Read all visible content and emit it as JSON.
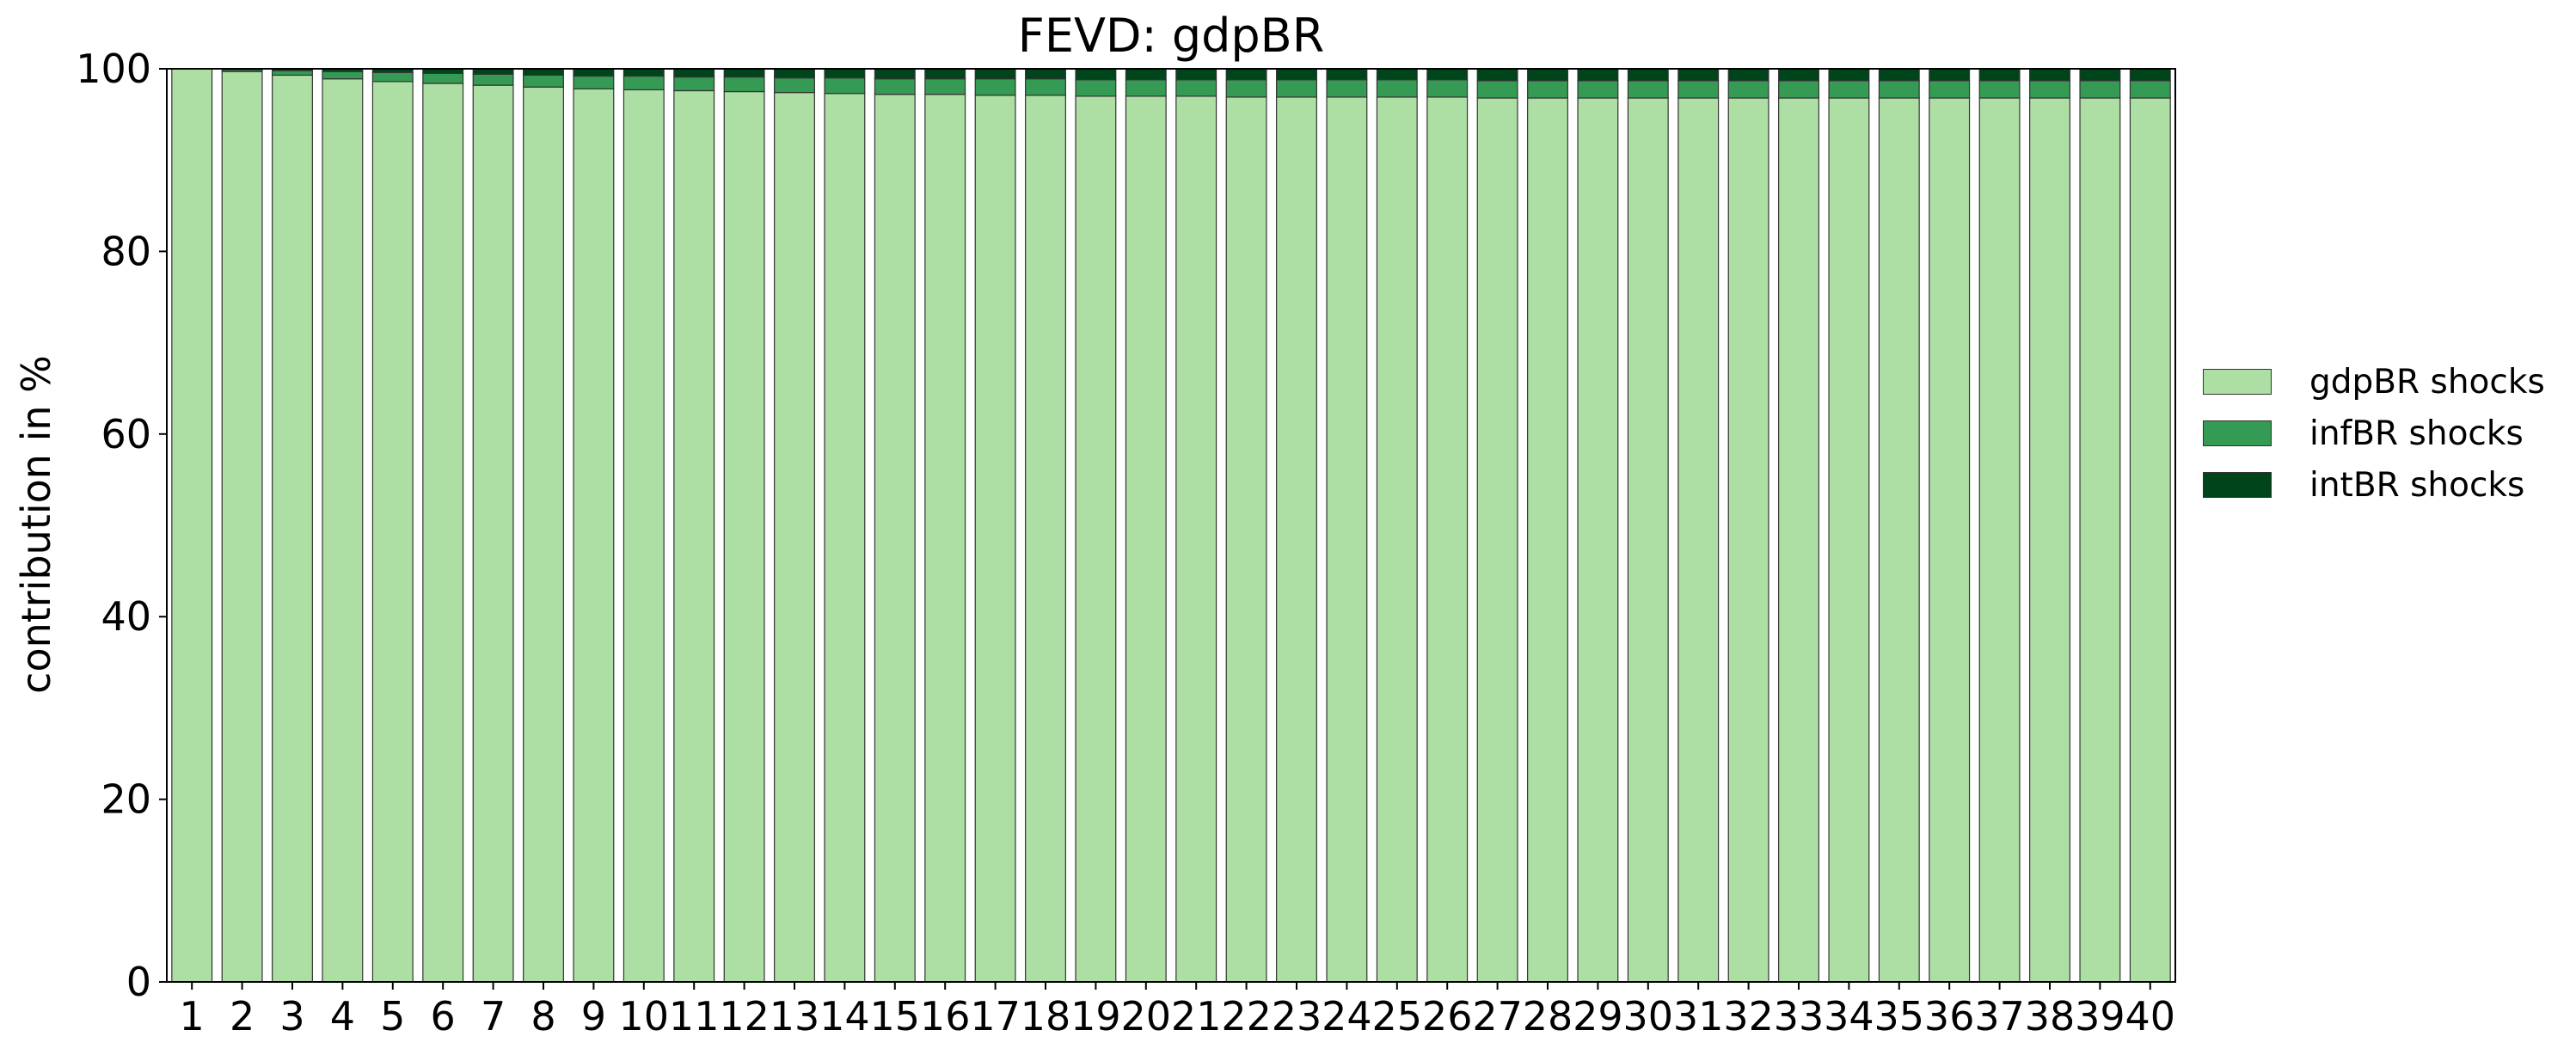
{
  "chart_data": {
    "type": "bar",
    "stacked": true,
    "title": "FEVD: gdpBR",
    "xlabel": "",
    "ylabel": "contribution in %",
    "ylim": [
      0,
      100
    ],
    "yticks": [
      "0",
      "20",
      "40",
      "60",
      "80",
      "100"
    ],
    "grid": false,
    "legend_position": "right",
    "categories": [
      "1",
      "2",
      "3",
      "4",
      "5",
      "6",
      "7",
      "8",
      "9",
      "10",
      "11",
      "12",
      "13",
      "14",
      "15",
      "16",
      "17",
      "18",
      "19",
      "20",
      "21",
      "22",
      "23",
      "24",
      "25",
      "26",
      "27",
      "28",
      "29",
      "30",
      "31",
      "32",
      "33",
      "34",
      "35",
      "36",
      "37",
      "38",
      "39",
      "40"
    ],
    "series": [
      {
        "name": "gdpBR shocks",
        "color": "#addfa5",
        "values": [
          100.0,
          99.7,
          99.3,
          98.9,
          98.6,
          98.4,
          98.2,
          98.0,
          97.8,
          97.7,
          97.6,
          97.5,
          97.4,
          97.3,
          97.2,
          97.2,
          97.1,
          97.1,
          97.0,
          97.0,
          97.0,
          96.9,
          96.9,
          96.9,
          96.9,
          96.9,
          96.8,
          96.8,
          96.8,
          96.8,
          96.8,
          96.8,
          96.8,
          96.8,
          96.8,
          96.8,
          96.8,
          96.8,
          96.8,
          96.8
        ]
      },
      {
        "name": "infBR shocks",
        "color": "#359a53",
        "values": [
          0.0,
          0.2,
          0.5,
          0.8,
          1.0,
          1.1,
          1.2,
          1.3,
          1.4,
          1.5,
          1.5,
          1.6,
          1.6,
          1.7,
          1.7,
          1.7,
          1.8,
          1.8,
          1.8,
          1.8,
          1.8,
          1.9,
          1.9,
          1.9,
          1.9,
          1.9,
          1.9,
          1.9,
          1.9,
          1.9,
          1.9,
          1.9,
          1.9,
          1.9,
          1.9,
          1.9,
          1.9,
          1.9,
          1.9,
          1.9
        ]
      },
      {
        "name": "intBR shocks",
        "color": "#00441b",
        "values": [
          0.0,
          0.1,
          0.2,
          0.3,
          0.4,
          0.5,
          0.6,
          0.7,
          0.8,
          0.8,
          0.9,
          0.9,
          1.0,
          1.0,
          1.1,
          1.1,
          1.1,
          1.1,
          1.2,
          1.2,
          1.2,
          1.2,
          1.2,
          1.2,
          1.2,
          1.2,
          1.3,
          1.3,
          1.3,
          1.3,
          1.3,
          1.3,
          1.3,
          1.3,
          1.3,
          1.3,
          1.3,
          1.3,
          1.3,
          1.3
        ]
      }
    ]
  }
}
